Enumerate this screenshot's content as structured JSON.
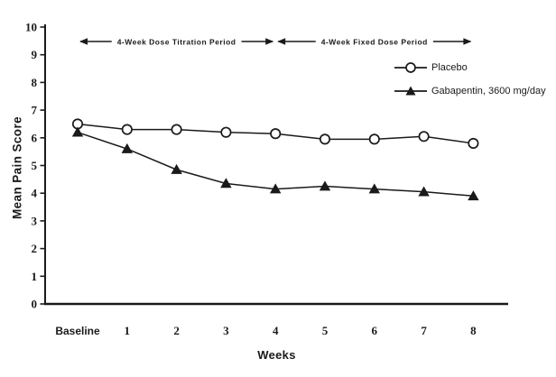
{
  "chart_data": {
    "type": "line",
    "title": "",
    "xlabel": "Weeks",
    "ylabel": "Mean Pain Score",
    "categories": [
      "Baseline",
      "1",
      "2",
      "3",
      "4",
      "5",
      "6",
      "7",
      "8"
    ],
    "ylim": [
      0,
      10
    ],
    "y_ticks": [
      0,
      1,
      2,
      3,
      4,
      5,
      6,
      7,
      8,
      9,
      10
    ],
    "grid": false,
    "legend_position": "upper-right-inside",
    "series": [
      {
        "name": "Placebo",
        "marker": "open-circle",
        "values": [
          6.5,
          6.3,
          6.3,
          6.2,
          6.15,
          5.95,
          5.95,
          6.05,
          5.8
        ]
      },
      {
        "name": "Gabapentin, 3600 mg/day",
        "marker": "filled-triangle",
        "values": [
          6.2,
          5.6,
          4.85,
          4.35,
          4.15,
          4.25,
          4.15,
          4.05,
          3.9
        ]
      }
    ],
    "annotations": [
      {
        "label": "4-Week Dose Titration Period",
        "x_start": 0,
        "x_end": 4
      },
      {
        "label": "4-Week Fixed Dose Period",
        "x_start": 4,
        "x_end": 8
      }
    ]
  },
  "colors": {
    "ink": "#1a1a1a",
    "background": "#ffffff"
  }
}
